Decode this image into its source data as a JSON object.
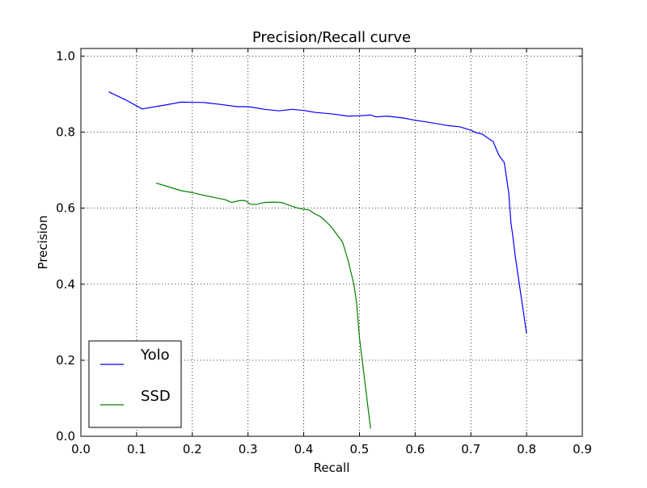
{
  "chart_data": {
    "type": "line",
    "title": "Precision/Recall curve",
    "xlabel": "Recall",
    "ylabel": "Precision",
    "xlim": [
      0.0,
      0.9
    ],
    "ylim": [
      0.0,
      1.02
    ],
    "xticks": [
      0.0,
      0.1,
      0.2,
      0.3,
      0.4,
      0.5,
      0.6,
      0.7,
      0.8,
      0.9
    ],
    "xtick_labels": [
      "0.0",
      "0.1",
      "0.2",
      "0.3",
      "0.4",
      "0.5",
      "0.6",
      "0.7",
      "0.8",
      "0.9"
    ],
    "yticks": [
      0.0,
      0.2,
      0.4,
      0.6,
      0.8,
      1.0
    ],
    "ytick_labels": [
      "0.0",
      "0.2",
      "0.4",
      "0.6",
      "0.8",
      "1.0"
    ],
    "grid": true,
    "legend_position": "lower-left",
    "series": [
      {
        "name": "Yolo",
        "color": "#0000ff",
        "x": [
          0.05,
          0.08,
          0.11,
          0.15,
          0.18,
          0.22,
          0.25,
          0.28,
          0.3,
          0.33,
          0.355,
          0.38,
          0.4,
          0.42,
          0.45,
          0.48,
          0.5,
          0.52,
          0.53,
          0.55,
          0.58,
          0.6,
          0.62,
          0.64,
          0.66,
          0.68,
          0.7,
          0.71,
          0.72,
          0.73,
          0.74,
          0.75,
          0.755,
          0.76,
          0.765,
          0.768,
          0.77,
          0.772,
          0.775,
          0.78,
          0.79,
          0.8
        ],
        "y": [
          0.906,
          0.885,
          0.861,
          0.871,
          0.879,
          0.878,
          0.873,
          0.867,
          0.867,
          0.86,
          0.856,
          0.86,
          0.857,
          0.852,
          0.848,
          0.842,
          0.843,
          0.845,
          0.84,
          0.842,
          0.837,
          0.831,
          0.827,
          0.822,
          0.817,
          0.814,
          0.805,
          0.798,
          0.795,
          0.785,
          0.775,
          0.74,
          0.73,
          0.72,
          0.67,
          0.64,
          0.6,
          0.56,
          0.53,
          0.47,
          0.37,
          0.27
        ]
      },
      {
        "name": "SSD",
        "color": "#008000",
        "x": [
          0.135,
          0.16,
          0.18,
          0.2,
          0.22,
          0.24,
          0.26,
          0.27,
          0.285,
          0.295,
          0.305,
          0.315,
          0.33,
          0.345,
          0.36,
          0.375,
          0.39,
          0.41,
          0.42,
          0.43,
          0.44,
          0.45,
          0.46,
          0.47,
          0.48,
          0.485,
          0.49,
          0.495,
          0.5,
          0.51,
          0.52
        ],
        "y": [
          0.666,
          0.655,
          0.646,
          0.641,
          0.634,
          0.628,
          0.622,
          0.615,
          0.62,
          0.62,
          0.61,
          0.61,
          0.615,
          0.616,
          0.615,
          0.607,
          0.6,
          0.595,
          0.585,
          0.578,
          0.565,
          0.55,
          0.53,
          0.51,
          0.46,
          0.43,
          0.4,
          0.35,
          0.26,
          0.14,
          0.02
        ]
      }
    ]
  }
}
